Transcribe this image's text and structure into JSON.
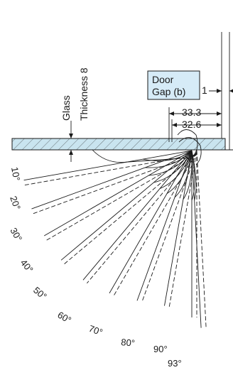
{
  "glass_label": [
    "Glass",
    "Thickness 8"
  ],
  "door_gap_label": [
    "Door",
    "Gap (b)"
  ],
  "gap_value": "1",
  "dimensions": [
    "33.3",
    "32.6"
  ],
  "angle_labels": [
    "10°",
    "20°",
    "30°",
    "40°",
    "50°",
    "60°",
    "70°",
    "80°",
    "90°",
    "93°"
  ],
  "colors": {
    "glass_fill": "#c9e4ef",
    "label_box_fill": "#d6ebf7",
    "line": "#1a1a1a"
  }
}
